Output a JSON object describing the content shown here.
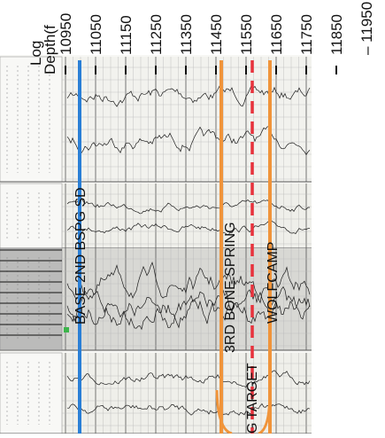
{
  "axis": {
    "title_line1": "Log",
    "title_line2": "Depth(f",
    "ticks": [
      "10950",
      "11050",
      "11150",
      "11250",
      "11350",
      "11450",
      "11550",
      "11650",
      "11750",
      "11850",
      "11950"
    ]
  },
  "formation_tops": [
    {
      "label": "BASE 2ND BSPG SD",
      "color": "#2a7fd6",
      "style": "solid"
    },
    {
      "label": "3RD BONE SPRING",
      "color": "#f0943a",
      "style": "solid"
    },
    {
      "label": "TARGET",
      "color": "#e8323c",
      "style": "dashed"
    },
    {
      "label": "WOLFCAMP",
      "color": "#f0943a",
      "style": "solid"
    }
  ],
  "partial_label": "G",
  "colors": {
    "grid": "#7a7a7a",
    "trace": "#1a1a1a",
    "paper": "#f7f7f4",
    "marker_green": "#3cb44b"
  }
}
